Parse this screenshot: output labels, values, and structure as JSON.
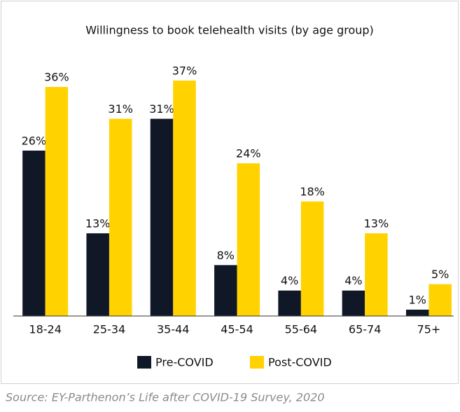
{
  "chart_data": {
    "type": "bar",
    "title": "Willingness to book telehealth visits (by age group)",
    "categories": [
      "18-24",
      "25-34",
      "35-44",
      "45-54",
      "55-64",
      "65-74",
      "75+"
    ],
    "series": [
      {
        "name": "Pre-COVID",
        "color": "#101828",
        "values": [
          26,
          13,
          31,
          8,
          4,
          4,
          1
        ],
        "value_labels": [
          "26%",
          "13%",
          "31%",
          "8%",
          "4%",
          "4%",
          "1%"
        ]
      },
      {
        "name": "Post-COVID",
        "color": "#ffd200",
        "values": [
          36,
          31,
          37,
          24,
          18,
          13,
          5
        ],
        "value_labels": [
          "36%",
          "31%",
          "37%",
          "24%",
          "18%",
          "13%",
          "5%"
        ]
      }
    ],
    "legend": "bottom",
    "source": "Source: EY-Parthenon’s Life after COVID-19 Survey, 2020"
  }
}
